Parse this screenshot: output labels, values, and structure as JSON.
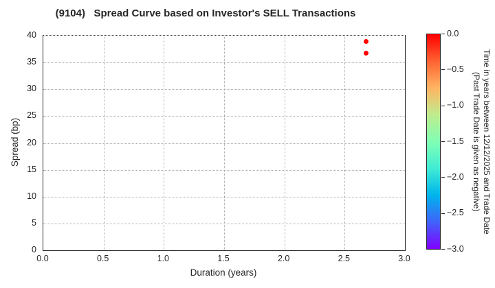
{
  "chart_data": {
    "type": "scatter",
    "title": "(9104)   Spread Curve based on Investor's SELL Transactions",
    "xlabel": "Duration (years)",
    "ylabel": "Spread (bp)",
    "xlim": [
      0.0,
      3.0
    ],
    "ylim": [
      0,
      40
    ],
    "grid": true,
    "legend": "none",
    "xticks": [
      0.0,
      0.5,
      1.0,
      1.5,
      2.0,
      2.5,
      3.0
    ],
    "xtick_labels": [
      "0.0",
      "0.5",
      "1.0",
      "1.5",
      "2.0",
      "2.5",
      "3.0"
    ],
    "yticks": [
      0,
      5,
      10,
      15,
      20,
      25,
      30,
      35,
      40
    ],
    "ytick_labels": [
      "0",
      "5",
      "10",
      "15",
      "20",
      "25",
      "30",
      "35",
      "40"
    ],
    "points": [
      {
        "x": 2.68,
        "y": 38.9,
        "time": 0.0,
        "color": "#ff0000"
      },
      {
        "x": 2.68,
        "y": 36.8,
        "time": 0.0,
        "color": "#ff0000"
      }
    ],
    "colorbar": {
      "label_line1": "Time in years between 12/12/2025 and Trade Date",
      "label_line2": "(Past Trade Date is given as negative)",
      "ticks": [
        0.0,
        -0.5,
        -1.0,
        -1.5,
        -2.0,
        -2.5,
        -3.0
      ],
      "tick_labels": [
        "0.0",
        "−0.5",
        "−1.0",
        "−1.5",
        "−2.0",
        "−2.5",
        "−3.0"
      ],
      "range_top": 0.0,
      "range_bottom": -3.0,
      "colormap": "rainbow",
      "gradient_stops": [
        {
          "pos": 0,
          "color": "#ff0000"
        },
        {
          "pos": 12.5,
          "color": "#ff6232"
        },
        {
          "pos": 25,
          "color": "#ffb462"
        },
        {
          "pos": 37.5,
          "color": "#bfec8e"
        },
        {
          "pos": 50,
          "color": "#80ffb4"
        },
        {
          "pos": 62.5,
          "color": "#40ecd4"
        },
        {
          "pos": 75,
          "color": "#00b4ec"
        },
        {
          "pos": 87.5,
          "color": "#4062fa"
        },
        {
          "pos": 100,
          "color": "#8000ff"
        }
      ]
    },
    "colors": {
      "text": "#262626",
      "grid": "#aaaaaa",
      "spine": "#262626",
      "marker": "#ff0000"
    }
  }
}
